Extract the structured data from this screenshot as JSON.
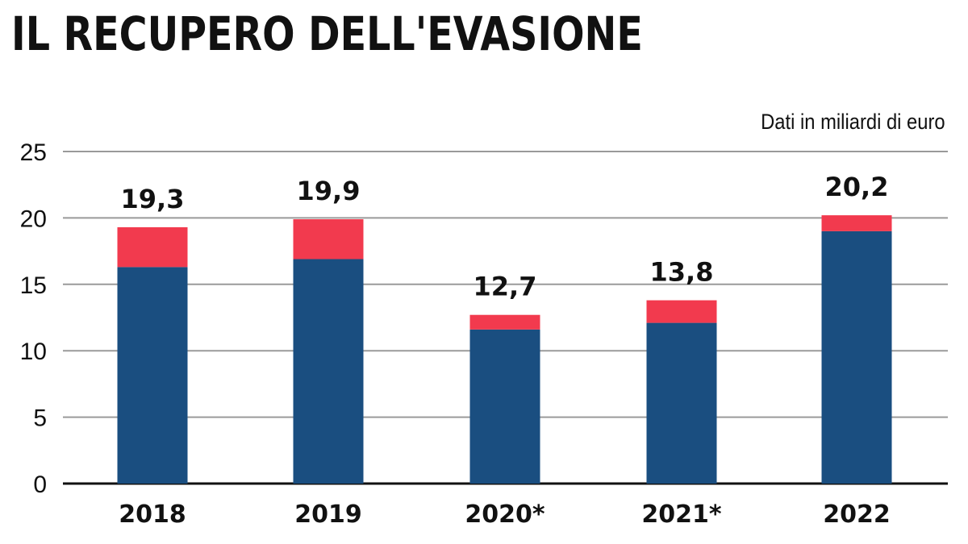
{
  "title": "IL RECUPERO DELL'EVASIONE",
  "unit_note": "Dati in miliardi di euro",
  "colors": {
    "primary_segment": "#1a4e80",
    "secondary_segment": "#f23a4e",
    "gridline": "#9a9a9a",
    "axis": "#111111"
  },
  "chart_data": {
    "type": "bar",
    "stacked": true,
    "categories": [
      "2018",
      "2019",
      "2020*",
      "2021*",
      "2022"
    ],
    "series": [
      {
        "values": [
          16.3,
          16.9,
          11.6,
          12.1,
          19.0
        ]
      },
      {
        "values": [
          3.0,
          3.0,
          1.1,
          1.7,
          1.2
        ]
      }
    ],
    "totals": [
      19.3,
      19.9,
      12.7,
      13.8,
      20.2
    ],
    "total_labels": [
      "19,3",
      "19,9",
      "12,7",
      "13,8",
      "20,2"
    ],
    "y_ticks": [
      0,
      5,
      10,
      15,
      20,
      25
    ],
    "ylim": [
      0,
      25
    ],
    "grid": true
  }
}
